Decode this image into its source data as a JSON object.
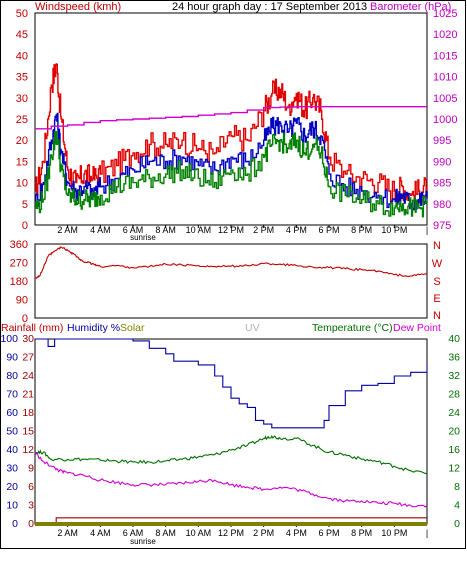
{
  "chart_data": [
    {
      "type": "line",
      "title": "24 hour graph day : 17 September 2013",
      "left_axis_label": "Windspeed (kmh)",
      "right_axis_label": "Barometer (hPa)",
      "left_ticks": [
        "0",
        "5",
        "10",
        "15",
        "20",
        "25",
        "30",
        "35",
        "40",
        "45",
        "50"
      ],
      "left_range": [
        0,
        50
      ],
      "right_ticks": [
        "975",
        "980",
        "985",
        "990",
        "995",
        "1000",
        "1005",
        "1010",
        "1015",
        "1020",
        "1025"
      ],
      "right_range": [
        975,
        1025
      ],
      "x_ticks": [
        "2 AM",
        "4 AM",
        "6 AM",
        "8 AM",
        "10 AM",
        "12 PM",
        "2 PM",
        "4 PM",
        "6 PM",
        "8 PM",
        "10 PM"
      ],
      "x_range_hours": [
        0,
        24
      ],
      "annotation": "sunrise",
      "colors": {
        "gust": "#e00000",
        "wind": "#0000c0",
        "avg": "#008000",
        "barometer": "#d000d0",
        "left_axis": "#c00000",
        "right_axis": "#c000c0"
      },
      "series": [
        {
          "name": "gust",
          "x": [
            0,
            0.5,
            1,
            1.3,
            1.6,
            2,
            2.5,
            3,
            3.5,
            4,
            5,
            6,
            7,
            8,
            9,
            10,
            11,
            12,
            13,
            14,
            14.5,
            15,
            15.5,
            16,
            16.5,
            17,
            17.5,
            18,
            19,
            20,
            21,
            22,
            22.5,
            23,
            23.5,
            24
          ],
          "y": [
            8,
            15,
            33,
            38,
            25,
            13,
            10,
            12,
            11,
            12,
            14,
            17,
            19,
            19,
            20,
            18,
            17,
            21,
            20,
            27,
            31,
            32,
            28,
            31,
            27,
            30,
            27,
            16,
            12,
            11,
            10,
            8,
            9,
            7,
            8,
            9
          ]
        },
        {
          "name": "wind",
          "x": [
            0,
            0.5,
            1,
            1.3,
            1.6,
            2,
            2.5,
            3,
            3.5,
            4,
            5,
            6,
            7,
            8,
            9,
            10,
            11,
            12,
            13,
            14,
            14.5,
            15,
            15.5,
            16,
            16.5,
            17,
            17.5,
            18,
            19,
            20,
            21,
            22,
            22.5,
            23,
            23.5,
            24
          ],
          "y": [
            5,
            10,
            20,
            26,
            17,
            10,
            8,
            9,
            8,
            9,
            11,
            13,
            15,
            15,
            16,
            14,
            13,
            16,
            15,
            20,
            23,
            24,
            22,
            24,
            21,
            23,
            21,
            12,
            9,
            8,
            7,
            6,
            7,
            5,
            6,
            6
          ]
        },
        {
          "name": "avg",
          "x": [
            0,
            0.5,
            1,
            1.3,
            1.6,
            2,
            2.5,
            3,
            3.5,
            4,
            5,
            6,
            7,
            8,
            9,
            10,
            11,
            12,
            13,
            14,
            14.5,
            15,
            15.5,
            16,
            16.5,
            17,
            17.5,
            18,
            19,
            20,
            21,
            22,
            22.5,
            23,
            23.5,
            24
          ],
          "y": [
            4,
            6,
            16,
            22,
            13,
            7,
            6,
            6,
            6,
            7,
            9,
            10,
            11,
            12,
            13,
            11,
            10,
            13,
            12,
            16,
            19,
            20,
            18,
            20,
            17,
            19,
            17,
            9,
            7,
            6,
            5,
            4,
            5,
            4,
            4,
            5
          ]
        },
        {
          "name": "barometer",
          "x": [
            0,
            1,
            2,
            3,
            4,
            5,
            6,
            7,
            8,
            9,
            10,
            11,
            12,
            13,
            14,
            15,
            16,
            17,
            18,
            19,
            20,
            21,
            22,
            23,
            24
          ],
          "y": [
            997.7,
            998.3,
            998.6,
            999.2,
            999.6,
            999.8,
            1000.0,
            1000.2,
            1000.4,
            1000.6,
            1000.9,
            1001.2,
            1001.5,
            1002.1,
            1002.7,
            1002.8,
            1002.9,
            1002.9,
            1002.9,
            1002.9,
            1002.9,
            1002.9,
            1002.9,
            1002.9,
            1002.9
          ]
        }
      ]
    },
    {
      "type": "line",
      "left_ticks": [
        "0",
        "90",
        "180",
        "270",
        "360"
      ],
      "left_range": [
        0,
        360
      ],
      "compass_labels": [
        "N",
        "W",
        "S",
        "E",
        "N"
      ],
      "x_ticks_shown": false,
      "series": [
        {
          "name": "direction",
          "x": [
            0,
            0.3,
            0.8,
            1.2,
            1.6,
            2.0,
            2.4,
            2.8,
            3.2,
            3.6,
            4.0,
            5,
            6,
            7,
            8,
            9,
            10,
            11,
            12,
            13,
            14,
            15,
            16,
            17,
            18,
            19,
            20,
            21,
            22,
            23,
            24
          ],
          "y": [
            195,
            205,
            300,
            325,
            345,
            330,
            310,
            280,
            270,
            262,
            250,
            255,
            245,
            250,
            262,
            258,
            255,
            250,
            252,
            255,
            265,
            262,
            255,
            248,
            245,
            240,
            235,
            228,
            210,
            205,
            215
          ]
        }
      ]
    },
    {
      "type": "line",
      "left_axis_labels": [
        "Rainfall (mm)",
        "Humidity %",
        "Solar",
        "UV",
        "Temperature (°C)",
        "Dew Point"
      ],
      "humidity_ticks": [
        "0",
        "10",
        "20",
        "30",
        "40",
        "50",
        "60",
        "70",
        "80",
        "90",
        "100"
      ],
      "rain_ticks": [
        "0",
        "3",
        "6",
        "9",
        "12",
        "15",
        "18",
        "21",
        "24",
        "27",
        "30"
      ],
      "temp_ticks": [
        "0",
        "4",
        "8",
        "12",
        "16",
        "20",
        "24",
        "28",
        "32",
        "36",
        "40"
      ],
      "x_ticks": [
        "2 AM",
        "4 AM",
        "6 AM",
        "8 AM",
        "10 AM",
        "12 PM",
        "2 PM",
        "4 PM",
        "6 PM",
        "8 PM",
        "10 PM"
      ],
      "annotation": "sunrise",
      "colors": {
        "humidity": "#0000a0",
        "temperature": "#007000",
        "dewpoint": "#d000d0",
        "rain": "#a00000",
        "solar": "#808000",
        "uv": "#c0c0c0"
      },
      "series": [
        {
          "name": "humidity",
          "x": [
            0,
            0.4,
            0.8,
            1.2,
            5.5,
            6,
            7,
            8,
            8.5,
            9,
            10,
            11,
            11.5,
            12,
            12.5,
            13,
            13.5,
            14,
            14.5,
            15,
            16,
            17,
            17.3,
            17.7,
            18,
            19,
            20,
            21,
            22,
            23,
            24
          ],
          "y": [
            100,
            100,
            96,
            100,
            100,
            99,
            95,
            92,
            88,
            88,
            86,
            80,
            74,
            68,
            65,
            63,
            56,
            54,
            52,
            52,
            52,
            52,
            52,
            56,
            64,
            72,
            75,
            76,
            80,
            82,
            86
          ]
        },
        {
          "name": "temperature",
          "x": [
            0,
            0.5,
            1,
            2,
            3,
            4,
            5,
            6,
            7,
            8,
            9,
            10,
            11,
            12,
            13,
            14,
            14.5,
            15,
            16,
            17,
            18,
            19,
            20,
            21,
            22,
            23,
            24
          ],
          "y": [
            15.5,
            15.5,
            14,
            14,
            14,
            13.8,
            13.6,
            13.4,
            13.4,
            13.6,
            14,
            14.5,
            15,
            16,
            17,
            18.5,
            19,
            18.5,
            18.5,
            17,
            15.5,
            15,
            14,
            13.5,
            12.5,
            11.5,
            11
          ]
        },
        {
          "name": "dewpoint",
          "x": [
            0,
            0.5,
            1,
            1.5,
            2,
            3,
            4,
            5,
            6,
            7,
            8,
            9,
            10,
            11,
            12,
            13,
            14,
            15,
            16,
            17,
            18,
            19,
            20,
            21,
            22,
            23,
            24
          ],
          "y": [
            15.5,
            13.5,
            12.5,
            11.5,
            11,
            10.5,
            9.5,
            9,
            8.5,
            8.5,
            8.5,
            8.8,
            9.2,
            9.5,
            8.5,
            8,
            7.5,
            8,
            7.5,
            6.5,
            5.5,
            5,
            5,
            4.5,
            4.5,
            4,
            4
          ]
        },
        {
          "name": "rain",
          "x": [
            0,
            1.3,
            1.3,
            24
          ],
          "y": [
            0,
            0,
            1,
            1
          ]
        },
        {
          "name": "solar",
          "x": [
            0,
            24
          ],
          "y": [
            0,
            0
          ]
        }
      ]
    }
  ]
}
